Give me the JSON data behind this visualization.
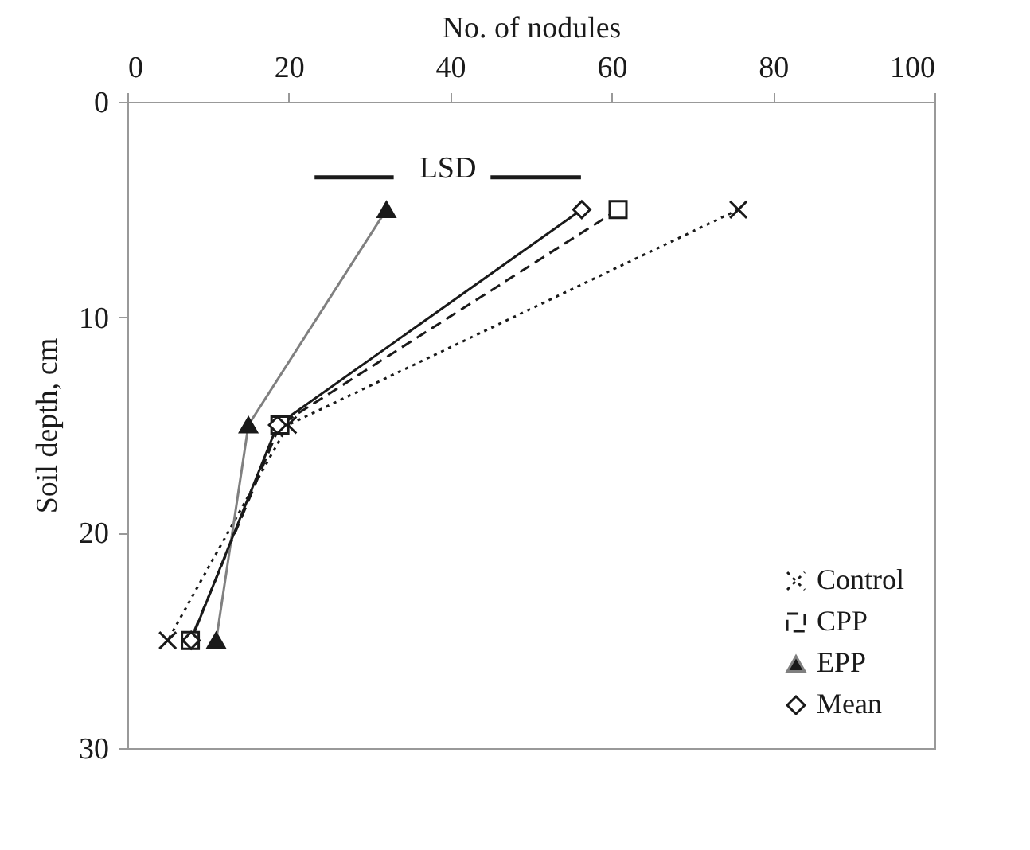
{
  "chart_data": {
    "type": "line",
    "xlabel": "No. of nodules",
    "ylabel": "Soil depth, cm",
    "xlim": [
      0,
      100
    ],
    "xticks": [
      0,
      20,
      40,
      60,
      80,
      100
    ],
    "ylim": [
      30,
      0
    ],
    "yticks": [
      0,
      10,
      20,
      30
    ],
    "grid": false,
    "legend": "bottom right",
    "series": [
      {
        "name": "Control",
        "color": "#1a1a1a",
        "x": [
          75.7,
          19.9,
          5.0
        ],
        "values": [
          5,
          15,
          25
        ],
        "marker": "cross",
        "line_style": "dotted"
      },
      {
        "name": "CPP",
        "color": "#1a1a1a",
        "x": [
          60.8,
          18.9,
          7.8
        ],
        "values": [
          5,
          15,
          25
        ],
        "marker": "square",
        "line_style": "dashed"
      },
      {
        "name": "EPP",
        "color": "#808080",
        "x": [
          32.1,
          15.0,
          11.0
        ],
        "values": [
          5,
          15,
          25
        ],
        "marker": "triangle",
        "line_style": "solid"
      },
      {
        "name": "Mean",
        "color": "#1a1a1a",
        "x": [
          56.3,
          18.6,
          7.9
        ],
        "values": [
          5,
          15,
          25
        ],
        "marker": "diamond",
        "line_style": "solid"
      },
      {
        "color": "#1a1a1a",
        "x": [
          23.2,
          33,
          39,
          45,
          56.2
        ],
        "values": [
          3.5,
          3.5,
          null,
          3.5,
          3.5
        ],
        "marker": "none",
        "line_style": "solid"
      }
    ],
    "annotations": [
      "LSD"
    ]
  }
}
